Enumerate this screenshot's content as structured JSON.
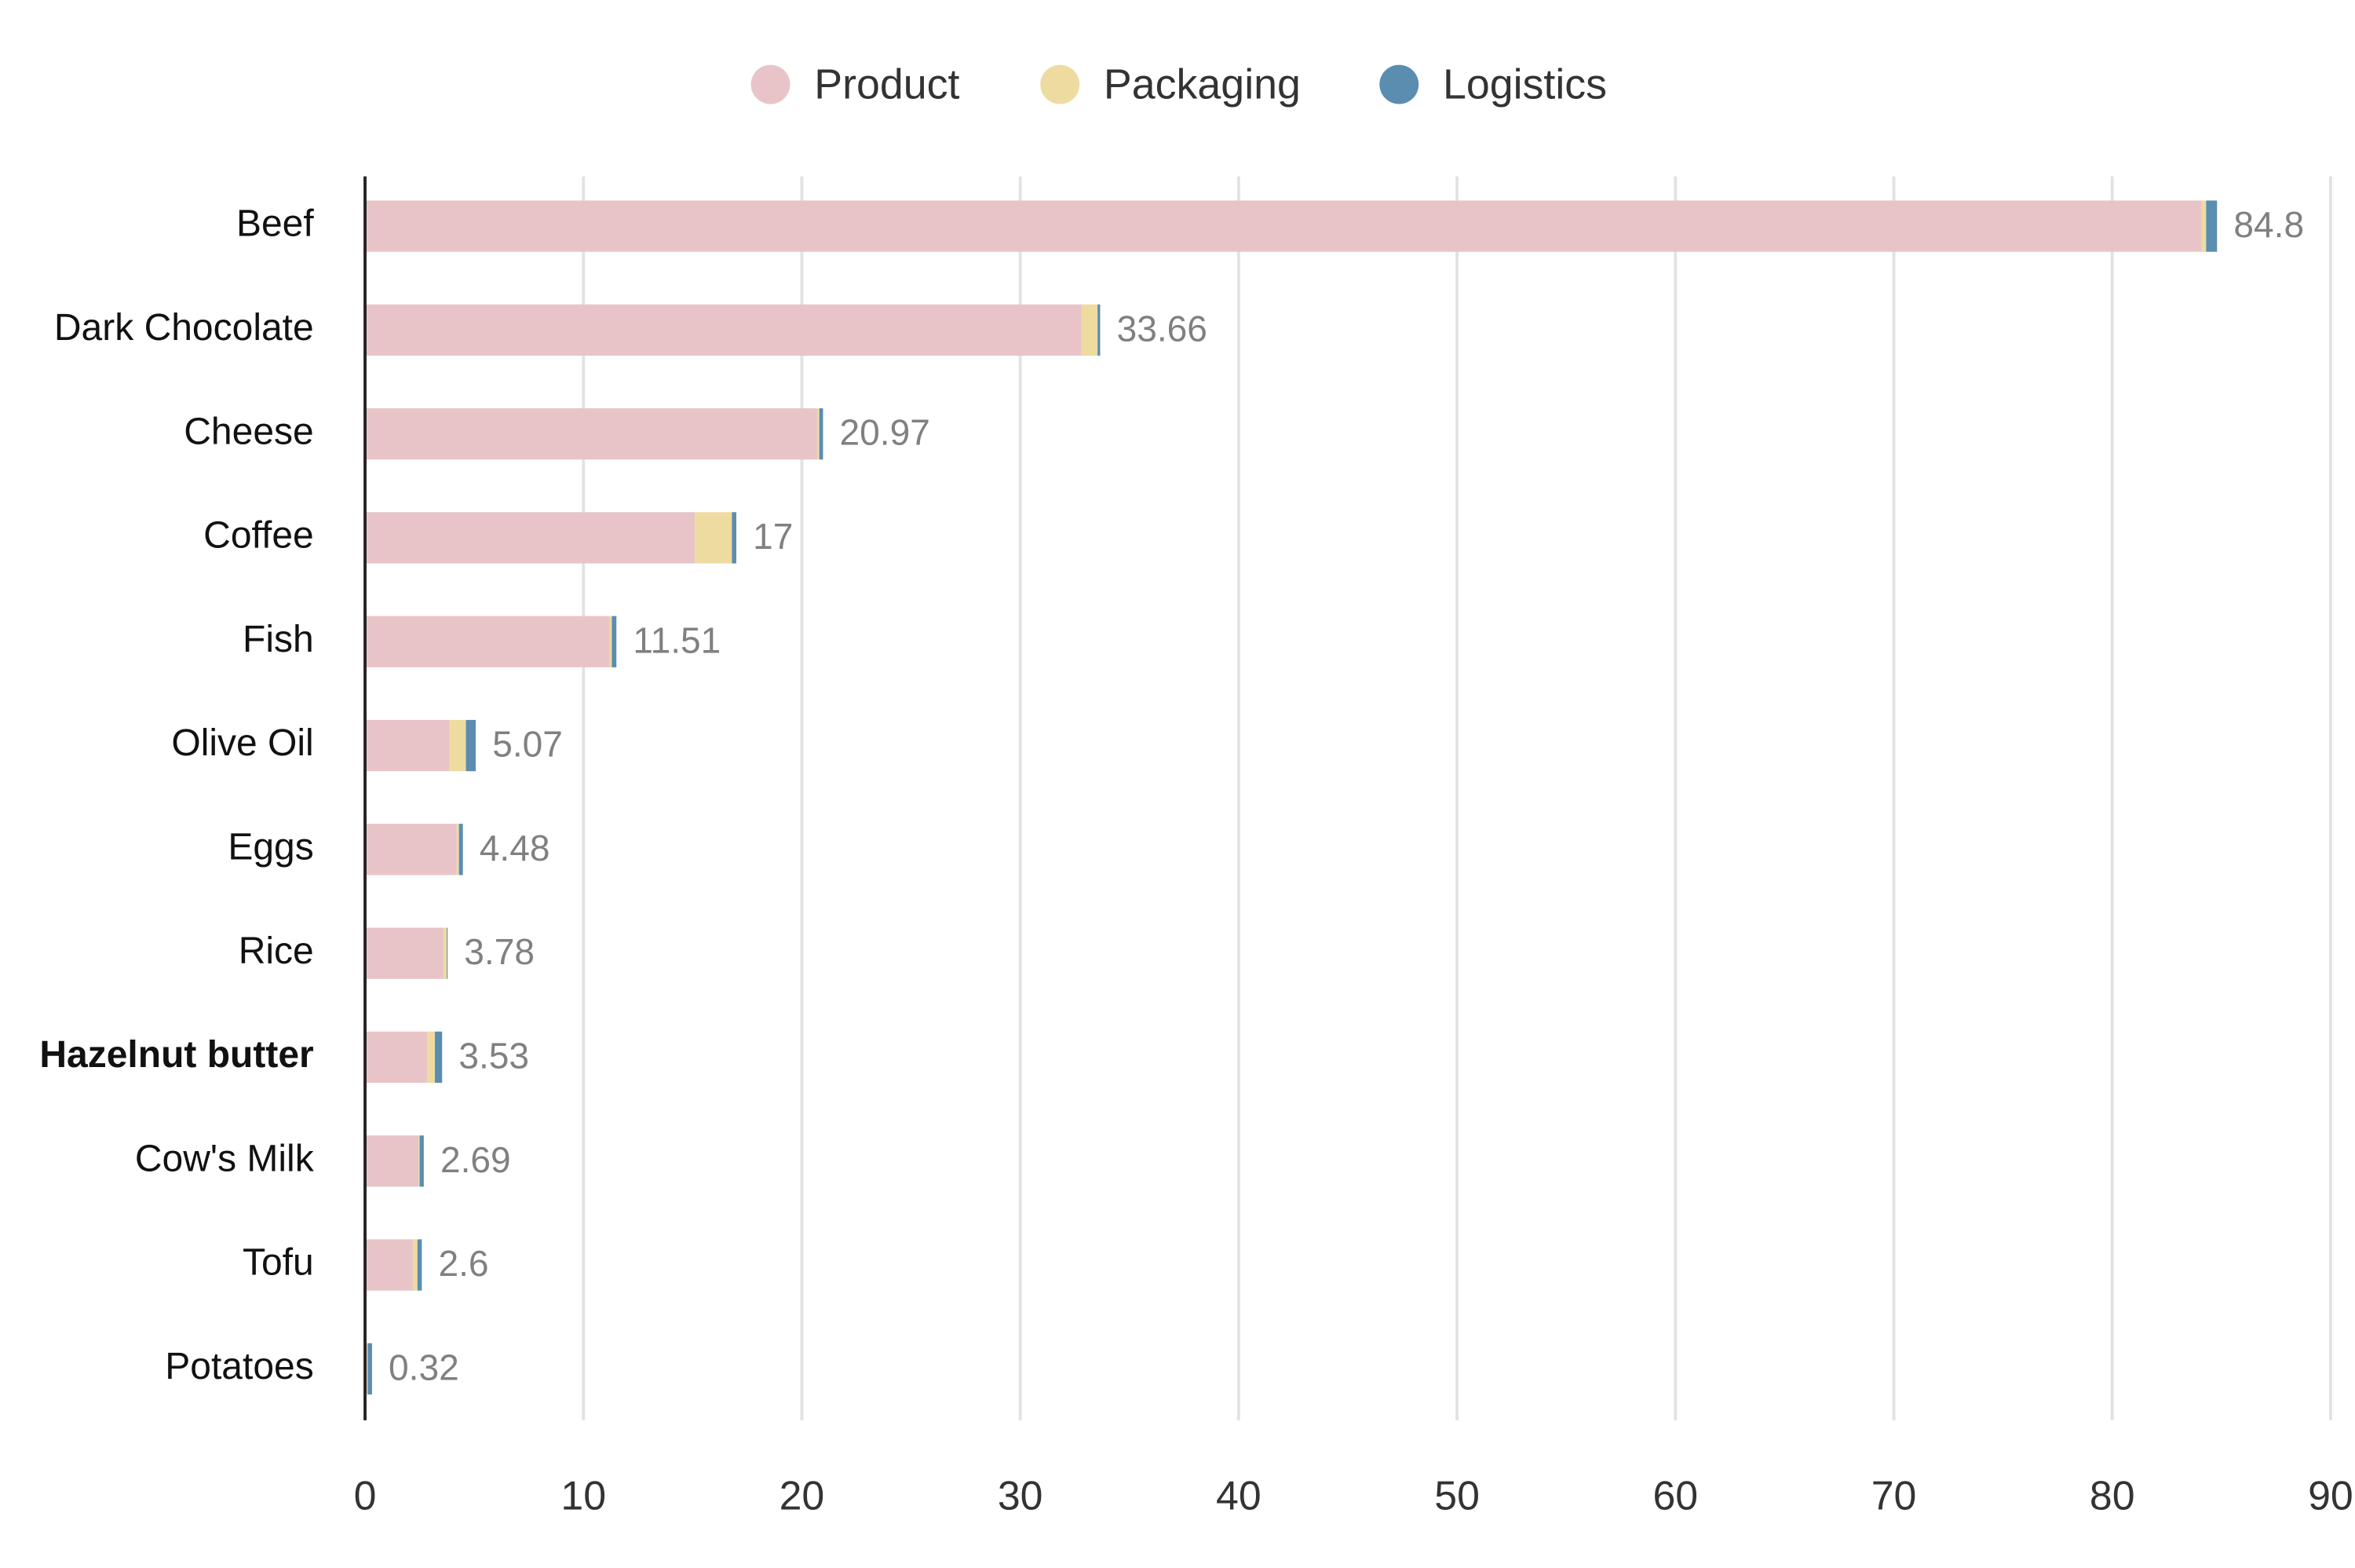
{
  "chart_data": {
    "type": "stacked_bar_horizontal",
    "categories": [
      "Beef",
      "Dark Chocolate",
      "Cheese",
      "Coffee",
      "Fish",
      "Olive Oil",
      "Eggs",
      "Rice",
      "Hazelnut butter",
      "Cow's Milk",
      "Tofu",
      "Potatoes"
    ],
    "series": [
      {
        "name": "Product",
        "color": "#e8c4c8",
        "values": [
          84.1,
          32.8,
          20.7,
          15.1,
          11.2,
          3.86,
          4.2,
          3.6,
          2.85,
          2.45,
          2.2,
          0.1
        ]
      },
      {
        "name": "Packaging",
        "color": "#eddba0",
        "values": [
          0.2,
          0.74,
          0.1,
          1.7,
          0.1,
          0.76,
          0.1,
          0.14,
          0.35,
          0.05,
          0.2,
          0.02
        ]
      },
      {
        "name": "Logistics",
        "color": "#5b8db0",
        "values": [
          0.5,
          0.12,
          0.17,
          0.2,
          0.21,
          0.45,
          0.18,
          0.04,
          0.33,
          0.19,
          0.2,
          0.2
        ]
      }
    ],
    "totals": [
      84.8,
      33.66,
      20.97,
      17,
      11.51,
      5.07,
      4.48,
      3.78,
      3.53,
      2.69,
      2.6,
      0.32
    ],
    "bold_category_index": 8,
    "xlim": [
      0,
      90
    ],
    "xticks": [
      0,
      10,
      20,
      30,
      40,
      50,
      60,
      70,
      80,
      90
    ],
    "grid": true,
    "legend_position": "top"
  }
}
